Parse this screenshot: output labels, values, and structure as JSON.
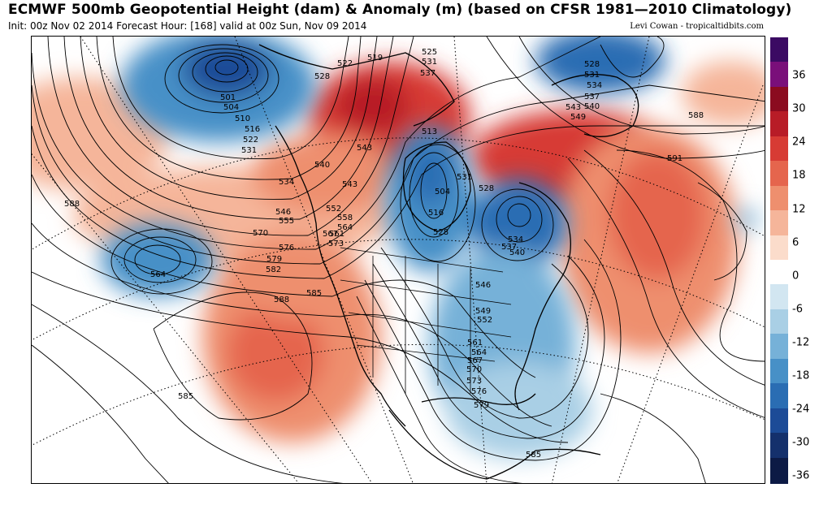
{
  "header": {
    "title": "ECMWF 500mb Geopotential Height (dam) & Anomaly (m) (based on CFSR 1981—2010 Climatology)",
    "subtitle": "Init: 00z Nov 02 2014 Forecast Hour: [168] valid at 00z Sun, Nov 09 2014",
    "credit": "Levi Cowan - tropicaltidbits.com"
  },
  "colorbar": {
    "ticks": [
      "36",
      "30",
      "24",
      "18",
      "12",
      "6",
      "0",
      "-6",
      "-12",
      "-18",
      "-24",
      "-30",
      "-36"
    ],
    "colors": [
      "#3b0a63",
      "#7a0f7a",
      "#8b0b1f",
      "#b81c27",
      "#d73b34",
      "#e5654d",
      "#ee8f6e",
      "#f5b59a",
      "#fbdccb",
      "#ffffff",
      "#d2e6f1",
      "#a9cfe5",
      "#76b1d8",
      "#4790c7",
      "#2a6db3",
      "#1c4b97",
      "#14306c",
      "#0c1a45"
    ]
  },
  "map": {
    "contour_labels": [
      {
        "text": "501"
      },
      {
        "text": "504"
      },
      {
        "text": "510"
      },
      {
        "text": "516"
      },
      {
        "text": "522"
      },
      {
        "text": "531"
      },
      {
        "text": "519"
      },
      {
        "text": "522"
      },
      {
        "text": "525"
      },
      {
        "text": "528"
      },
      {
        "text": "531"
      },
      {
        "text": "537"
      },
      {
        "text": "528"
      },
      {
        "text": "531"
      },
      {
        "text": "534"
      },
      {
        "text": "537"
      },
      {
        "text": "540"
      },
      {
        "text": "543"
      },
      {
        "text": "549"
      },
      {
        "text": "588"
      },
      {
        "text": "591"
      },
      {
        "text": "540"
      },
      {
        "text": "534"
      },
      {
        "text": "543"
      },
      {
        "text": "546"
      },
      {
        "text": "552"
      },
      {
        "text": "555"
      },
      {
        "text": "558"
      },
      {
        "text": "561"
      },
      {
        "text": "564"
      },
      {
        "text": "567"
      },
      {
        "text": "570"
      },
      {
        "text": "573"
      },
      {
        "text": "576"
      },
      {
        "text": "579"
      },
      {
        "text": "582"
      },
      {
        "text": "585"
      },
      {
        "text": "588"
      },
      {
        "text": "564"
      },
      {
        "text": "588"
      },
      {
        "text": "504"
      },
      {
        "text": "516"
      },
      {
        "text": "528"
      },
      {
        "text": "531"
      },
      {
        "text": "534"
      },
      {
        "text": "537"
      },
      {
        "text": "540"
      },
      {
        "text": "546"
      },
      {
        "text": "549"
      },
      {
        "text": "552"
      },
      {
        "text": "561"
      },
      {
        "text": "564"
      },
      {
        "text": "567"
      },
      {
        "text": "570"
      },
      {
        "text": "573"
      },
      {
        "text": "576"
      },
      {
        "text": "579"
      },
      {
        "text": "585"
      },
      {
        "text": "585"
      },
      {
        "text": "543"
      },
      {
        "text": "513"
      },
      {
        "text": "528"
      }
    ],
    "anomaly_regions": [
      {
        "name": "gulf-of-alaska-low",
        "color": "#2a6db3"
      },
      {
        "name": "north-pacific-low",
        "color": "#4790c7"
      },
      {
        "name": "hudson-bay-low",
        "color": "#2a6db3"
      },
      {
        "name": "great-lakes-low",
        "color": "#2a6db3"
      },
      {
        "name": "central-us-trough",
        "color": "#76b1d8"
      },
      {
        "name": "greenland-low",
        "color": "#2a6db3"
      },
      {
        "name": "alaska-ridge",
        "color": "#b81c27"
      },
      {
        "name": "atlantic-ridge",
        "color": "#d73b34"
      },
      {
        "name": "west-coast-ridge",
        "color": "#e5654d"
      }
    ]
  }
}
